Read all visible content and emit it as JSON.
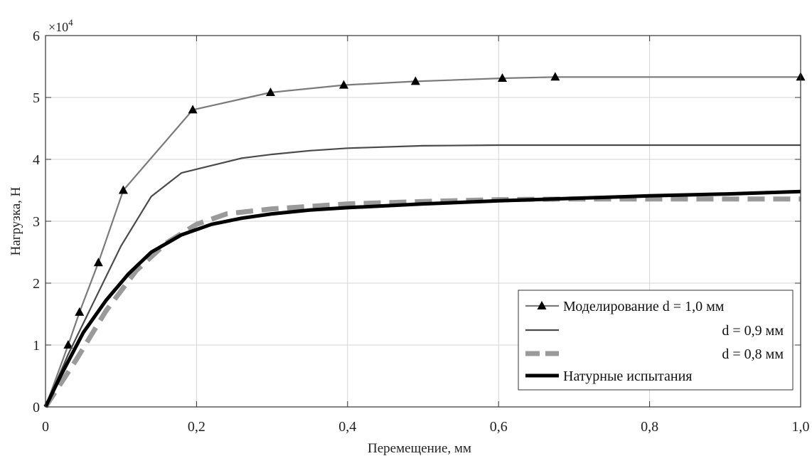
{
  "chart_data": {
    "type": "line",
    "xlabel": "Перемещение, мм",
    "ylabel": "Нагрузка, Н",
    "y_multiplier": "×10",
    "y_multiplier_exp": "4",
    "xlim": [
      0,
      1.0
    ],
    "ylim": [
      0,
      6
    ],
    "x_ticks": [
      "0",
      "0,2",
      "0,4",
      "0,6",
      "0,8",
      "1,0"
    ],
    "y_ticks": [
      "0",
      "1",
      "2",
      "3",
      "4",
      "5",
      "6"
    ],
    "x_tick_values": [
      0,
      0.2,
      0.4,
      0.6,
      0.8,
      1.0
    ],
    "y_tick_values": [
      0,
      1,
      2,
      3,
      4,
      5,
      6
    ],
    "grid": true,
    "legend_position": "bottom-right",
    "series": [
      {
        "name": "Моделирование d = 1,0 мм",
        "color": "#7a7a7a",
        "style": "line-triangle",
        "x": [
          0,
          0.03,
          0.045,
          0.07,
          0.103,
          0.195,
          0.298,
          0.395,
          0.49,
          0.605,
          0.675,
          1.0
        ],
        "y": [
          0,
          1.0,
          1.53,
          2.33,
          3.5,
          4.8,
          5.08,
          5.2,
          5.26,
          5.31,
          5.33,
          5.33
        ]
      },
      {
        "name": "d = 0,9 мм",
        "color": "#4a4a4a",
        "style": "line-thin",
        "x": [
          0,
          0.03,
          0.06,
          0.1,
          0.14,
          0.18,
          0.22,
          0.26,
          0.3,
          0.35,
          0.4,
          0.5,
          0.6,
          0.7,
          0.8,
          1.0
        ],
        "y": [
          0,
          0.85,
          1.6,
          2.6,
          3.4,
          3.78,
          3.9,
          4.02,
          4.08,
          4.14,
          4.18,
          4.22,
          4.23,
          4.23,
          4.23,
          4.23
        ]
      },
      {
        "name": "d = 0,8 мм",
        "color": "#9a9a9a",
        "style": "dashed-thick",
        "x": [
          0,
          0.04,
          0.08,
          0.12,
          0.16,
          0.2,
          0.24,
          0.3,
          0.4,
          0.5,
          0.6,
          0.7,
          0.8,
          0.9,
          1.0
        ],
        "y": [
          0,
          0.75,
          1.55,
          2.2,
          2.65,
          2.95,
          3.12,
          3.2,
          3.28,
          3.32,
          3.35,
          3.36,
          3.36,
          3.36,
          3.36
        ]
      },
      {
        "name": "Натурные испытания",
        "color": "#000000",
        "style": "line-thick",
        "x": [
          0,
          0.02,
          0.05,
          0.08,
          0.11,
          0.14,
          0.18,
          0.22,
          0.26,
          0.3,
          0.35,
          0.4,
          0.5,
          0.6,
          0.7,
          0.8,
          0.9,
          1.0
        ],
        "y": [
          0,
          0.5,
          1.2,
          1.72,
          2.15,
          2.5,
          2.78,
          2.95,
          3.05,
          3.12,
          3.18,
          3.22,
          3.28,
          3.33,
          3.37,
          3.41,
          3.44,
          3.48
        ]
      }
    ]
  }
}
